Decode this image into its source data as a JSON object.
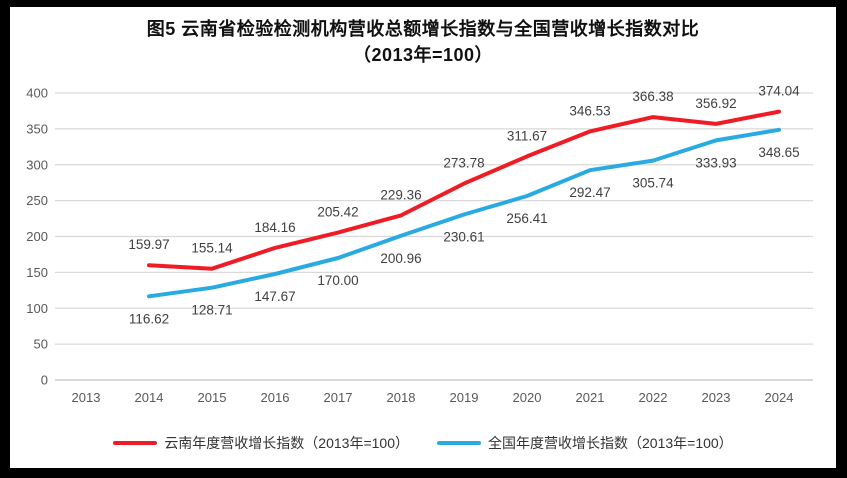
{
  "title": {
    "line1": "图5  云南省检验检测机构营收总额增长指数与全国营收增长指数对比",
    "line2": "（2013年=100）"
  },
  "colors": {
    "frame_border": "#000000",
    "background": "#ffffff",
    "gridline": "#d9d9d9",
    "axis_line": "#c0c0c0",
    "axis_label": "#595959",
    "data_label": "#404040",
    "title_text": "#111111",
    "legend_text": "#333333",
    "yunnan_line": "#ee1c25",
    "national_line": "#29abe2"
  },
  "chart_data": {
    "type": "line",
    "title": "图5 云南省检验检测机构营收总额增长指数与全国营收增长指数对比（2013年=100）",
    "categories": [
      "2013",
      "2014",
      "2015",
      "2016",
      "2017",
      "2018",
      "2019",
      "2020",
      "2021",
      "2022",
      "2023",
      "2024"
    ],
    "series": [
      {
        "name": "云南年度营收增长指数（2013年=100）",
        "color": "#ee1c25",
        "label_position": "above",
        "values": [
          null,
          159.97,
          155.14,
          184.16,
          205.42,
          229.36,
          273.78,
          311.67,
          346.53,
          366.38,
          356.92,
          374.04
        ]
      },
      {
        "name": "全国年度营收增长指数（2013年=100）",
        "color": "#29abe2",
        "label_position": "below",
        "values": [
          null,
          116.62,
          128.71,
          147.67,
          170.0,
          200.96,
          230.61,
          256.41,
          292.47,
          305.74,
          333.93,
          348.65
        ]
      }
    ],
    "xlabel": "",
    "ylabel": "",
    "ylim": [
      0,
      400
    ],
    "ytick_step": 50,
    "grid": true,
    "data_labels": true,
    "label_decimals": 2,
    "legend_position": "bottom"
  }
}
